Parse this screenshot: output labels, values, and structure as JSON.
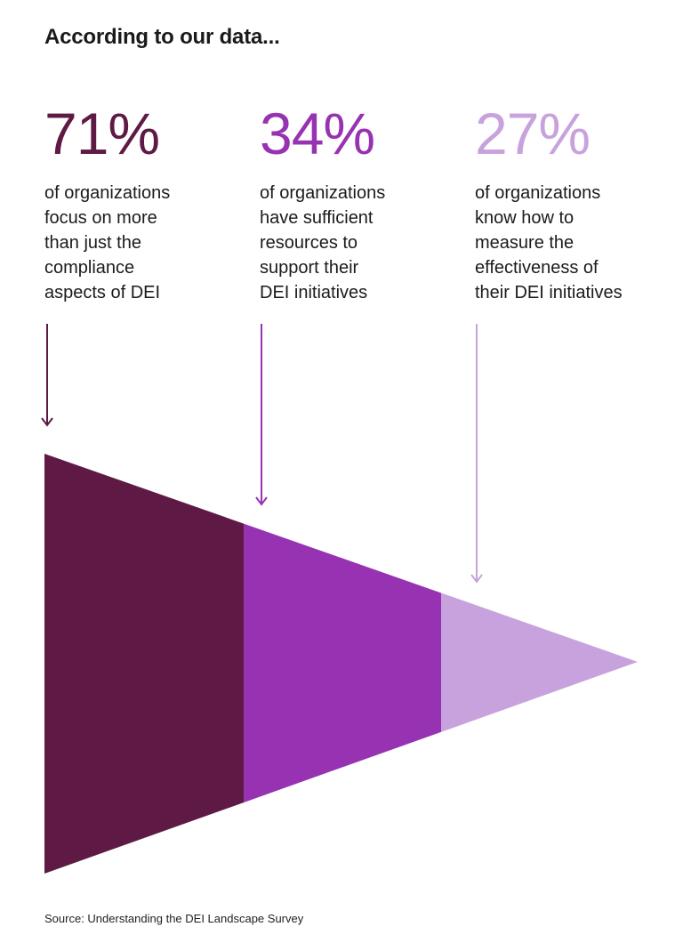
{
  "heading": "According to our data...",
  "source": "Source: Understanding the DEI Landscape Survey",
  "colors": {
    "level_1": "#5e1a45",
    "level_2": "#9733b2",
    "level_3": "#c7a2dd"
  },
  "chart_data": {
    "type": "funnel",
    "title": "According to our data...",
    "categories": [
      "of organizations focus on more than just the compliance aspects of DEI",
      "of organizations have sufficient resources to support their DEI initiatives",
      "of organizations know how to measure the effectiveness of their DEI initiatives"
    ],
    "values": [
      71,
      34,
      27
    ],
    "unit": "%",
    "stats": [
      {
        "value_label": "71%",
        "description": "of organizations\nfocus on more\nthan just the\ncompliance\naspects of DEI",
        "color": "#5e1a45"
      },
      {
        "value_label": "34%",
        "description": "of organizations\nhave sufficient\nresources to\nsupport their\nDEI initiatives",
        "color": "#9733b2"
      },
      {
        "value_label": "27%",
        "description": "of organizations\nknow how to\nmeasure the\neffectiveness of\ntheir DEI initiatives",
        "color": "#c7a2dd"
      }
    ]
  }
}
